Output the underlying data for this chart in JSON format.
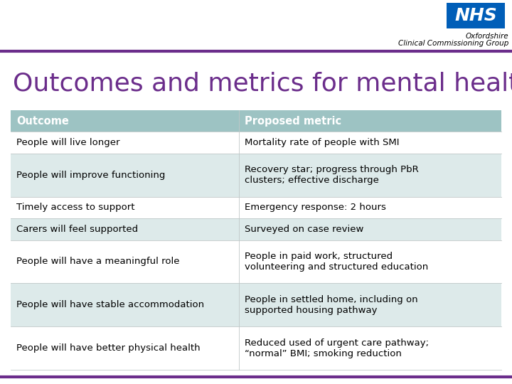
{
  "title": "Outcomes and metrics for mental health",
  "title_color": "#6B2D8B",
  "title_fontsize": 26,
  "header_bg": "#9DC3C3",
  "header_text_color": "#ffffff",
  "row_bg_odd": "#ffffff",
  "row_bg_even": "#ddeaea",
  "col1_header": "Outcome",
  "col2_header": "Proposed metric",
  "rows": [
    [
      "People will live longer",
      "Mortality rate of people with SMI"
    ],
    [
      "People will improve functioning",
      "Recovery star; progress through PbR\nclusters; effective discharge"
    ],
    [
      "Timely access to support",
      "Emergency response: 2 hours"
    ],
    [
      "Carers will feel supported",
      "Surveyed on case review"
    ],
    [
      "People will have a meaningful role",
      "People in paid work, structured\nvolunteering and structured education"
    ],
    [
      "People will have stable accommodation",
      "People in settled home, including on\nsupported housing pathway"
    ],
    [
      "People will have better physical health",
      "Reduced used of urgent care pathway;\n“normal” BMI; smoking reduction"
    ]
  ],
  "nhs_blue": "#005EB8",
  "purple_line": "#6B2D8B",
  "bg_color": "#ffffff",
  "font_size": 9.5,
  "header_font_size": 10.5,
  "org_name_line1": "Oxfordshire",
  "org_name_line2": "Clinical Commissioning Group"
}
